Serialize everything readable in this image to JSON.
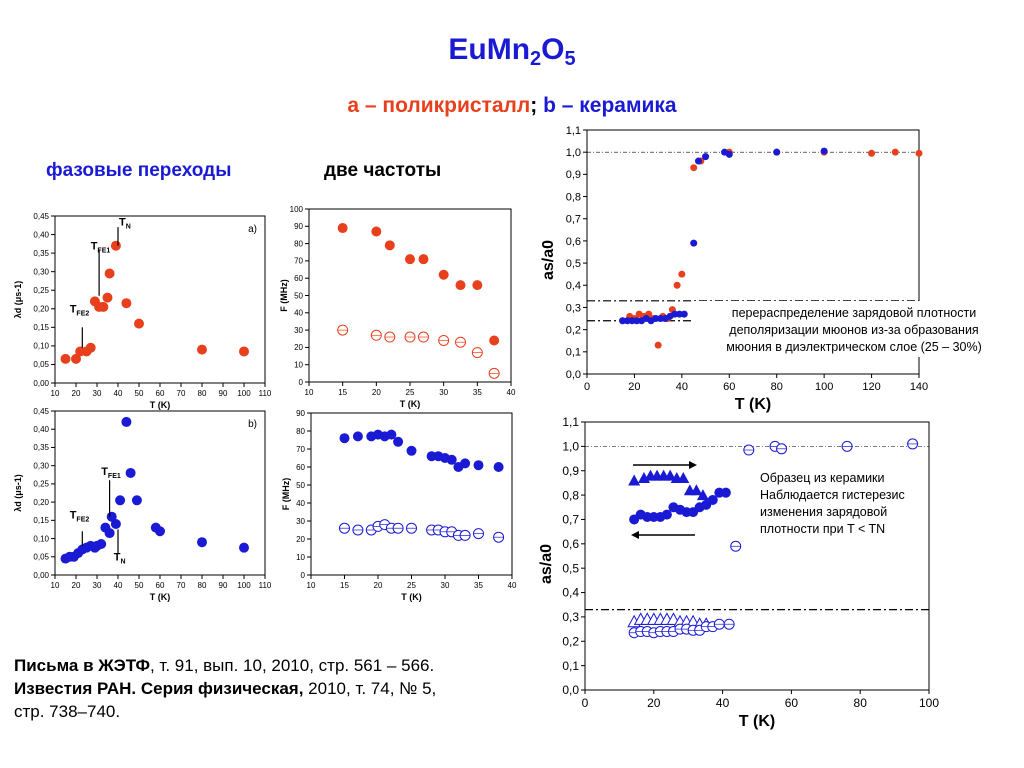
{
  "title": {
    "base": "EuMn",
    "sub1": "2",
    "mid": "O",
    "sub2": "5"
  },
  "subtitle": {
    "a": "а – поликристалл",
    "sep": ";",
    "b": "b – керамика"
  },
  "headings": {
    "phase": "фазовые переходы",
    "freq": "две частоты"
  },
  "references": {
    "line1_bold": "Письма в ЖЭТФ",
    "line1": ", т. 91, вып. 10, 2010, стр. 561 – 566.",
    "line2_bold": "Известия РАН. Серия физическая,",
    "line2": " 2010, т. 74, № 5,",
    "line3": "стр. 738–740."
  },
  "colors": {
    "title": "#1a1ad4",
    "red": "#e8401c",
    "blue": "#1a1ad4"
  },
  "chart_data": [
    {
      "id": "lambda_a",
      "type": "scatter",
      "panel_label": "a)",
      "xlabel": "T (K)",
      "ylabel": "λd (μs-1)",
      "xlim": [
        10,
        110
      ],
      "ylim": [
        0,
        0.45
      ],
      "xticks": [
        "10",
        "20",
        "30",
        "40",
        "50",
        "60",
        "70",
        "80",
        "90",
        "100",
        "110"
      ],
      "yticks": [
        "0,00",
        "0,05",
        "0,10",
        "0,15",
        "0,20",
        "0,25",
        "0,30",
        "0,35",
        "0,40",
        "0,45"
      ],
      "series": [
        {
          "color": "#e8401c",
          "marker": "filled-circle",
          "x": [
            15,
            20,
            22,
            25,
            27,
            29,
            31,
            33,
            35,
            36,
            39,
            44,
            50,
            80,
            100
          ],
          "y": [
            0.065,
            0.065,
            0.085,
            0.085,
            0.095,
            0.22,
            0.205,
            0.205,
            0.23,
            0.295,
            0.37,
            0.215,
            0.16,
            0.09,
            0.085
          ]
        }
      ],
      "annotations": [
        "TN",
        "TFE1",
        "TFE2"
      ]
    },
    {
      "id": "freq_a",
      "type": "scatter",
      "xlabel": "T (K)",
      "ylabel": "F (MHz)",
      "xlim": [
        10,
        40
      ],
      "ylim": [
        0,
        100
      ],
      "xticks": [
        "10",
        "15",
        "20",
        "25",
        "30",
        "35",
        "40"
      ],
      "yticks": [
        "0",
        "10",
        "20",
        "30",
        "40",
        "50",
        "60",
        "70",
        "80",
        "90",
        "100"
      ],
      "series": [
        {
          "color": "#e8401c",
          "marker": "filled-circle",
          "x": [
            15,
            20,
            22,
            25,
            27,
            30,
            32.5,
            35,
            37.5
          ],
          "y": [
            89,
            87,
            79,
            71,
            71,
            62,
            56,
            56,
            24
          ]
        },
        {
          "color": "#e8401c",
          "marker": "open-circle",
          "x": [
            15,
            20,
            22,
            25,
            27,
            30,
            32.5,
            35,
            37.5
          ],
          "y": [
            30,
            27,
            26,
            26,
            26,
            24,
            23,
            17,
            5
          ]
        }
      ]
    },
    {
      "id": "lambda_b",
      "type": "scatter",
      "panel_label": "b)",
      "xlabel": "T (K)",
      "ylabel": "λd (μs-1)",
      "xlim": [
        10,
        110
      ],
      "ylim": [
        0,
        0.45
      ],
      "xticks": [
        "10",
        "20",
        "30",
        "40",
        "50",
        "60",
        "70",
        "80",
        "90",
        "100",
        "110"
      ],
      "yticks": [
        "0,00",
        "0,05",
        "0,10",
        "0,15",
        "0,20",
        "0,25",
        "0,30",
        "0,35",
        "0,40",
        "0,45"
      ],
      "series": [
        {
          "color": "#1a1ad4",
          "marker": "filled-circle",
          "x": [
            15,
            17,
            19,
            21,
            23,
            25,
            27,
            29,
            30,
            32,
            34,
            36,
            37,
            39,
            41,
            44,
            46,
            49,
            58,
            60,
            80,
            100
          ],
          "y": [
            0.045,
            0.05,
            0.05,
            0.06,
            0.07,
            0.075,
            0.08,
            0.075,
            0.08,
            0.085,
            0.13,
            0.115,
            0.16,
            0.14,
            0.205,
            0.42,
            0.28,
            0.205,
            0.13,
            0.12,
            0.09,
            0.075
          ]
        }
      ],
      "annotations": [
        "TN",
        "TFE1",
        "TFE2"
      ]
    },
    {
      "id": "freq_b",
      "type": "scatter",
      "xlabel": "T (K)",
      "ylabel": "F (MHz)",
      "xlim": [
        10,
        40
      ],
      "ylim": [
        0,
        90
      ],
      "xticks": [
        "10",
        "15",
        "20",
        "25",
        "30",
        "35",
        "40"
      ],
      "yticks": [
        "0",
        "10",
        "20",
        "30",
        "40",
        "50",
        "60",
        "70",
        "80",
        "90"
      ],
      "series": [
        {
          "color": "#1a1ad4",
          "marker": "filled-circle",
          "x": [
            15,
            17,
            19,
            20,
            21,
            22,
            23,
            25,
            28,
            29,
            30,
            31,
            32,
            33,
            35,
            38
          ],
          "y": [
            76,
            77,
            77,
            78,
            77,
            78,
            74,
            69,
            66,
            66,
            65,
            64,
            60,
            62,
            61,
            60
          ]
        },
        {
          "color": "#1a1ad4",
          "marker": "open-circle",
          "x": [
            15,
            17,
            19,
            20,
            21,
            22,
            23,
            25,
            28,
            29,
            30,
            31,
            32,
            33,
            35,
            38
          ],
          "y": [
            26,
            25,
            25,
            27,
            28,
            26,
            26,
            26,
            25,
            25,
            24,
            24,
            22,
            22,
            23,
            21
          ]
        }
      ]
    },
    {
      "id": "asym_a",
      "type": "scatter",
      "xlabel": "T (K)",
      "ylabel": "as/a0",
      "xlim": [
        0,
        140
      ],
      "ylim": [
        0,
        1.1
      ],
      "xticks": [
        "0",
        "20",
        "40",
        "60",
        "80",
        "100",
        "120",
        "140"
      ],
      "yticks": [
        "0,0",
        "0,1",
        "0,2",
        "0,3",
        "0,4",
        "0,5",
        "0,6",
        "0,7",
        "0,8",
        "0,9",
        "1,0",
        "1,1"
      ],
      "reference_lines": [
        1.0,
        0.33,
        0.24
      ],
      "series": [
        {
          "color": "#e8401c",
          "marker": "filled-circle",
          "x": [
            15,
            18,
            20,
            22,
            24,
            26,
            28,
            30,
            32,
            34,
            36,
            38,
            40,
            45,
            48,
            60,
            80,
            100,
            120,
            130,
            140
          ],
          "y": [
            0.24,
            0.26,
            0.25,
            0.27,
            0.26,
            0.27,
            0.25,
            0.13,
            0.26,
            0.25,
            0.29,
            0.4,
            0.45,
            0.93,
            0.96,
            1.0,
            1.0,
            1.0,
            0.995,
            1.0,
            0.995
          ]
        },
        {
          "color": "#1a1ad4",
          "marker": "filled-circle",
          "x": [
            15,
            17,
            19,
            21,
            23,
            25,
            27,
            29,
            31,
            33,
            35,
            37,
            39,
            41,
            45,
            47,
            50,
            58,
            60,
            80,
            100
          ],
          "y": [
            0.24,
            0.24,
            0.24,
            0.24,
            0.24,
            0.25,
            0.24,
            0.25,
            0.25,
            0.25,
            0.26,
            0.27,
            0.27,
            0.27,
            0.59,
            0.96,
            0.98,
            1.0,
            0.99,
            1.0,
            1.005
          ]
        }
      ],
      "annotation": [
        "перераспределение зарядовой плотности",
        "деполяризации мюонов из-за образования",
        "мюония в диэлектрическом слое (25 – 30%)"
      ]
    },
    {
      "id": "asym_b",
      "type": "scatter",
      "xlabel": "T (K)",
      "ylabel": "as/a0",
      "xlim": [
        0,
        105
      ],
      "ylim": [
        0,
        1.1
      ],
      "xticks": [
        "0",
        "20",
        "40",
        "60",
        "80",
        "100"
      ],
      "yticks": [
        "0,0",
        "0,1",
        "0,2",
        "0,3",
        "0,4",
        "0,5",
        "0,6",
        "0,7",
        "0,8",
        "0,9",
        "1,0",
        "1,1"
      ],
      "reference_lines": [
        1.0,
        0.33
      ],
      "series": [
        {
          "color": "#1a1ad4",
          "marker": "filled-circle",
          "x": [
            15,
            17,
            19,
            21,
            23,
            25,
            27,
            29,
            31,
            33,
            35,
            37,
            39,
            41,
            43
          ],
          "y": [
            0.7,
            0.72,
            0.71,
            0.71,
            0.71,
            0.72,
            0.75,
            0.74,
            0.73,
            0.73,
            0.75,
            0.76,
            0.78,
            0.81,
            0.81
          ]
        },
        {
          "color": "#1a1ad4",
          "marker": "filled-triangle",
          "x": [
            15,
            18,
            20,
            22,
            24,
            26,
            28,
            30,
            32,
            34,
            36
          ],
          "y": [
            0.86,
            0.87,
            0.88,
            0.88,
            0.88,
            0.88,
            0.87,
            0.87,
            0.82,
            0.82,
            0.8
          ]
        },
        {
          "color": "#1a1ad4",
          "marker": "open-triangle",
          "x": [
            15,
            17,
            19,
            21,
            23,
            25,
            27,
            29,
            31,
            33,
            35,
            37
          ],
          "y": [
            0.28,
            0.29,
            0.29,
            0.29,
            0.29,
            0.29,
            0.29,
            0.28,
            0.28,
            0.28,
            0.27,
            0.27
          ]
        },
        {
          "color": "#1a1ad4",
          "marker": "open-circle",
          "x": [
            15,
            17,
            19,
            21,
            23,
            25,
            27,
            29,
            31,
            33,
            35,
            37,
            39,
            41,
            44,
            46,
            50,
            58,
            60,
            80,
            100
          ],
          "y": [
            0.235,
            0.24,
            0.24,
            0.235,
            0.24,
            0.24,
            0.24,
            0.25,
            0.25,
            0.245,
            0.245,
            0.26,
            0.26,
            0.27,
            0.27,
            0.59,
            0.985,
            1.0,
            0.99,
            1.0,
            1.01
          ]
        }
      ],
      "annotation": [
        "Образец из керамики",
        "Наблюдается гистерезис",
        "изменения зарядовой",
        "плотности при T < TN"
      ]
    }
  ]
}
